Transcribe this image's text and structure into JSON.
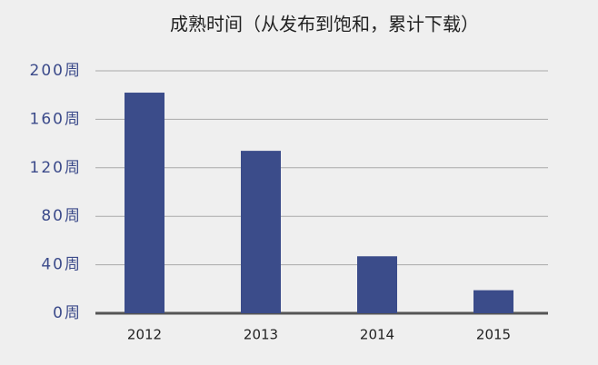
{
  "chart_data": {
    "type": "bar",
    "title": "成熟时间（从发布到饱和，累计下载）",
    "categories": [
      "2012",
      "2013",
      "2014",
      "2015"
    ],
    "values": [
      182,
      134,
      47,
      19
    ],
    "color": "#3b4c8a",
    "ylim": [
      0,
      200
    ],
    "yticks": [
      {
        "value": 0,
        "label": "0周"
      },
      {
        "value": 40,
        "label": "40周"
      },
      {
        "value": 80,
        "label": "80周"
      },
      {
        "value": 120,
        "label": "120周"
      },
      {
        "value": 160,
        "label": "160周"
      },
      {
        "value": 200,
        "label": "200周"
      }
    ],
    "grid": true
  }
}
